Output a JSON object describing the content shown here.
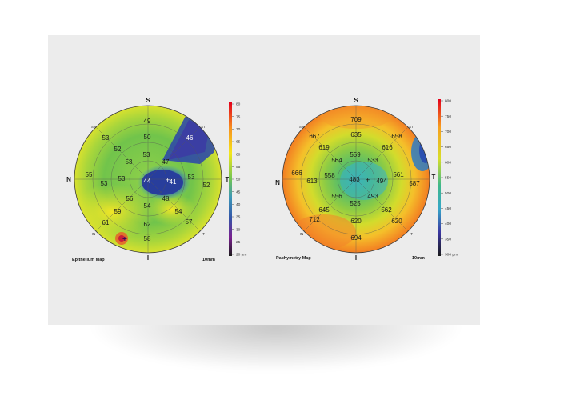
{
  "maps": [
    {
      "name": "epithelium",
      "title": "Epithelium Map",
      "scale_label": "10mm",
      "orientation": {
        "top": "S",
        "bottom": "I",
        "left": "N",
        "right": "T",
        "top_left": "SN",
        "top_right": "ST",
        "bottom_left": "IN",
        "bottom_right": "IT"
      },
      "values": {
        "center": "44",
        "center_right": "41",
        "inner_ring": [
          "53",
          "47",
          "53",
          "56",
          "54",
          "48",
          "53"
        ],
        "mid_ring": [
          "50",
          "53",
          "53",
          "52",
          "57",
          "62",
          "59",
          "54"
        ],
        "outer_ring": [
          "49",
          "46",
          "52",
          "57",
          "58",
          "59",
          "61",
          "55",
          "53"
        ],
        "extra": [
          "63",
          "52",
          "53"
        ]
      },
      "colorbar": {
        "ticks": [
          "80",
          "75",
          "70",
          "65",
          "60",
          "55",
          "50",
          "45",
          "40",
          "35",
          "30",
          "25",
          "20 µm"
        ],
        "colors": [
          "#e3001b",
          "#f04a1a",
          "#f7931e",
          "#fbbb22",
          "#f5e71b",
          "#c6df2a",
          "#7fcb4a",
          "#45b77f",
          "#3c96b8",
          "#3356a8",
          "#4a2d8e",
          "#7a1f8f",
          "#1a1a1a"
        ]
      }
    },
    {
      "name": "pachymetry",
      "title": "Pachymetry Map",
      "scale_label": "10mm",
      "orientation": {
        "top": "S",
        "bottom": "I",
        "left": "N",
        "right": "T",
        "top_left": "SN",
        "top_right": "ST",
        "bottom_left": "IN",
        "bottom_right": "IT"
      },
      "values": {
        "center": "483",
        "center_right": "494",
        "inner_ring": [
          "559",
          "533",
          "494",
          "493",
          "525",
          "556",
          "558",
          "564"
        ],
        "mid_ring": [
          "635",
          "616",
          "561",
          "562",
          "620",
          "645",
          "613",
          "619"
        ],
        "outer_ring": [
          "709",
          "658",
          "587",
          "620",
          "694",
          "712",
          "666",
          "667"
        ]
      },
      "colorbar": {
        "ticks": [
          "800",
          "750",
          "700",
          "650",
          "600",
          "550",
          "500",
          "450",
          "400",
          "350",
          "300 µm"
        ],
        "colors": [
          "#e3001b",
          "#f26a1b",
          "#f7a01e",
          "#fbc62a",
          "#d7de2a",
          "#8ecc45",
          "#3fb88b",
          "#36a6c9",
          "#3a6fc0",
          "#3a35a0",
          "#1a1a1a"
        ]
      }
    }
  ]
}
